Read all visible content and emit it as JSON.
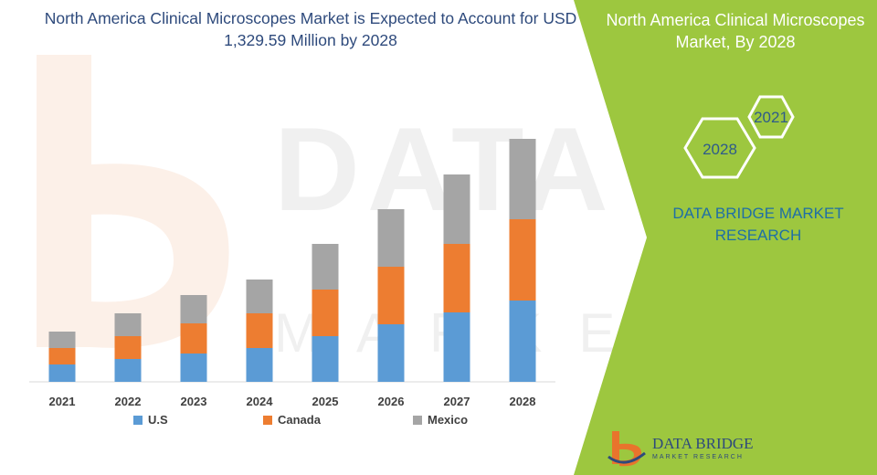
{
  "chart_data": {
    "type": "bar",
    "stacked": true,
    "title": "North America Clinical Microscopes Market is Expected to Account for USD 1,329.59 Million by 2028",
    "xlabel": "",
    "ylabel": "",
    "categories": [
      "2021",
      "2022",
      "2023",
      "2024",
      "2025",
      "2026",
      "2027",
      "2028"
    ],
    "series": [
      {
        "name": "U.S",
        "color": "#5b9bd5",
        "values": [
          19,
          25,
          31,
          37,
          50,
          63,
          76,
          89
        ]
      },
      {
        "name": "Canada",
        "color": "#ed7d31",
        "values": [
          18,
          25,
          33,
          38,
          51,
          63,
          75,
          89
        ]
      },
      {
        "name": "Mexico",
        "color": "#a5a5a5",
        "values": [
          18,
          25,
          31,
          37,
          50,
          63,
          76,
          88
        ]
      }
    ],
    "ylim": [
      0,
      290
    ],
    "grid": false,
    "legend_position": "bottom"
  },
  "panel": {
    "title_line1": "North America Clinical Microscopes",
    "title_line2": "Market, By 2028",
    "hex_small": "2021",
    "hex_large": "2028",
    "research_line1": "DATA BRIDGE MARKET",
    "research_line2": "RESEARCH",
    "accent_color": "#9dc73f"
  },
  "logo": {
    "name": "DATA BRIDGE",
    "subtitle": "MARKET RESEARCH"
  },
  "watermark": {
    "line1": "DATA BRIDGE",
    "line2": "MARKET RESEARCH"
  }
}
